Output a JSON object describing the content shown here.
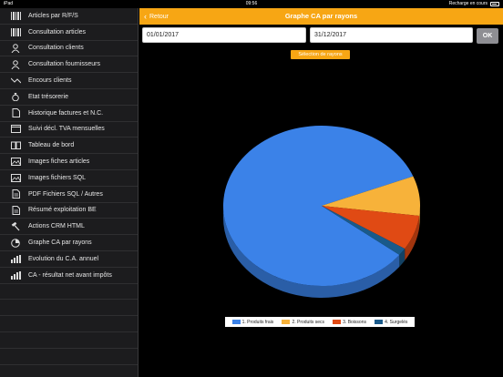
{
  "statusbar": {
    "device": "iPad",
    "time": "09:56",
    "charging": "Recharge en cours"
  },
  "sidebar": {
    "items": [
      {
        "label": "Articles par R/F/S",
        "icon": "barcode-icon"
      },
      {
        "label": "Consultation articles",
        "icon": "barcode-icon"
      },
      {
        "label": "Consultation clients",
        "icon": "person-icon"
      },
      {
        "label": "Consultation fournisseurs",
        "icon": "person-icon"
      },
      {
        "label": "Encours clients",
        "icon": "trend-arrow-icon"
      },
      {
        "label": "Etat trésorerie",
        "icon": "money-bag-icon"
      },
      {
        "label": "Historique factures et N.C.",
        "icon": "document-icon"
      },
      {
        "label": "Suivi décl. TVA mensuelles",
        "icon": "window-icon"
      },
      {
        "label": "Tableau de bord",
        "icon": "book-icon"
      },
      {
        "label": "Images fiches articles",
        "icon": "image-icon"
      },
      {
        "label": "Images fichiers SQL",
        "icon": "image-icon"
      },
      {
        "label": "PDF Fichiers SQL / Autres",
        "icon": "pdf-icon"
      },
      {
        "label": "Résumé exploitation BE",
        "icon": "pdf-icon"
      },
      {
        "label": "Actions CRM HTML",
        "icon": "hammer-icon"
      },
      {
        "label": "Graphe CA par rayons",
        "icon": "pie-icon"
      },
      {
        "label": "Evolution du C.A. annuel",
        "icon": "bar-chart-icon"
      },
      {
        "label": "CA - résultat net avant impôts",
        "icon": "bar-chart-icon"
      }
    ]
  },
  "navbar": {
    "back_label": "Retour",
    "title": "Graphe CA par rayons"
  },
  "filters": {
    "date_from": "01/01/2017",
    "date_to": "31/12/2017",
    "ok_label": "OK",
    "select_label": "Sélection de rayons"
  },
  "colors": {
    "accent": "#f7a614",
    "series": [
      "#3b82e8",
      "#f7b23a",
      "#e04a14",
      "#1a5a8a"
    ]
  },
  "chart_data": {
    "type": "pie",
    "title": "",
    "legend_position": "bottom",
    "categories": [
      "1. Produits frais",
      "2. Produits secs",
      "3. Boissons",
      "4. Surgelés"
    ],
    "values": [
      83.5,
      8,
      7,
      1.5
    ]
  }
}
